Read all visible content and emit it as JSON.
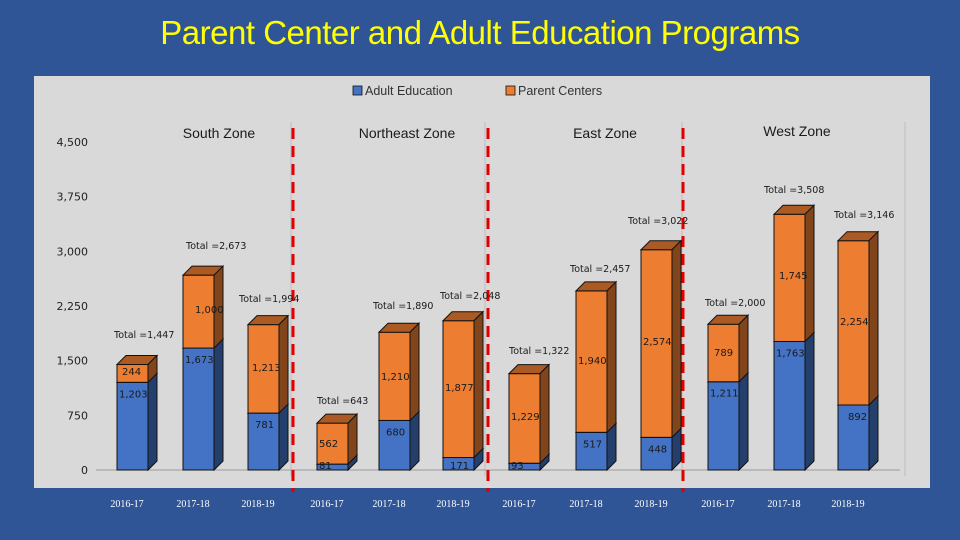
{
  "title": "Parent Center and Adult Education Programs",
  "colors": {
    "background": "#2f5597",
    "plot": "#d9d9d9",
    "adult_education": "#4472c4",
    "parent_centers": "#ed7d31",
    "divider": "#e00000",
    "year_labels": "#ffffff"
  },
  "chart_data": {
    "type": "bar",
    "stacked": true,
    "title": "Parent Center and Adult Education Programs",
    "ylim": [
      0,
      4500
    ],
    "yticks": [
      "0",
      "750",
      "1,500",
      "2,250",
      "3,000",
      "3,750",
      "4,500"
    ],
    "legend": [
      "Adult Education",
      "Parent Centers"
    ],
    "legend_position": "top",
    "zones": [
      "South Zone",
      "Northeast Zone",
      "East Zone",
      "West Zone"
    ],
    "categories": [
      "2016-17",
      "2017-18",
      "2018-19",
      "2016-17",
      "2017-18",
      "2018-19",
      "2016-17",
      "2017-18",
      "2018-19",
      "2016-17",
      "2017-18",
      "2018-19"
    ],
    "series": [
      {
        "name": "Adult Education",
        "values": [
          1203,
          1673,
          781,
          81,
          680,
          171,
          93,
          517,
          448,
          1211,
          1763,
          892
        ],
        "labels": [
          "1,203",
          "1,673",
          "781",
          "81",
          "680",
          "171",
          "93",
          "517",
          "448",
          "1,211",
          "1,763",
          "892"
        ]
      },
      {
        "name": "Parent Centers",
        "values": [
          244,
          1000,
          1213,
          562,
          1210,
          1877,
          1229,
          1940,
          2574,
          789,
          1745,
          2254
        ],
        "labels": [
          "244",
          "1,000",
          "1,213",
          "562",
          "1,210",
          "1,877",
          "1,229",
          "1,940",
          "2,574",
          "789",
          "1,745",
          "2,254"
        ]
      }
    ],
    "totals": [
      "Total =1,447",
      "Total =2,673",
      "Total =1,994",
      "Total =643",
      "Total =1,890",
      "Total =2,048",
      "Total =1,322",
      "Total =2,457",
      "Total =3,022",
      "Total =2,000",
      "Total =3,508",
      "Total =3,146"
    ]
  }
}
